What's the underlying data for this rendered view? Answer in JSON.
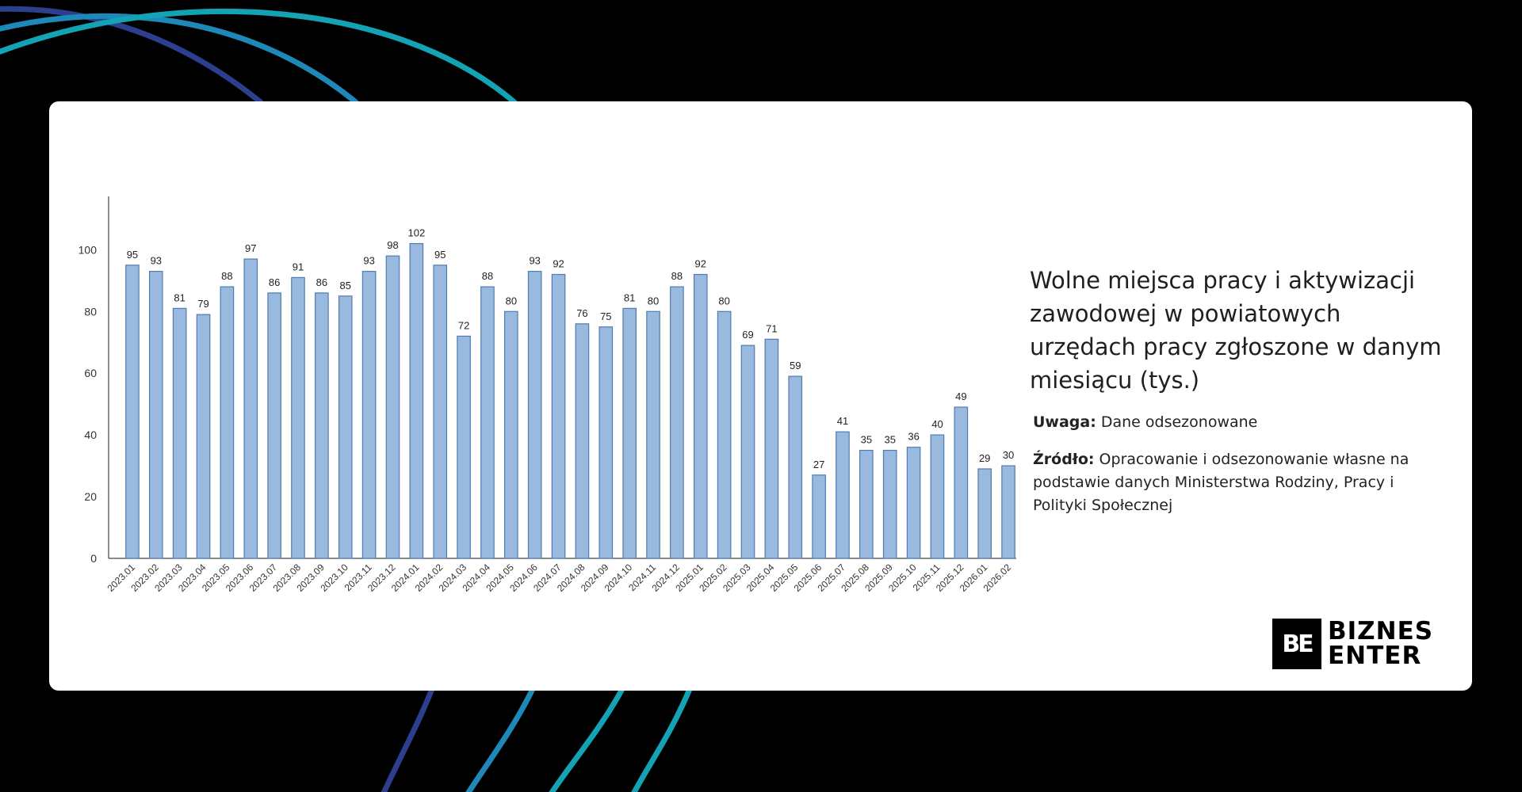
{
  "colors": {
    "background": "#000000",
    "card": "#ffffff",
    "bar_fill": "#9ab9de",
    "bar_stroke": "#4f7cb0",
    "arc_blue": "#1e88b8",
    "arc_teal": "#13a3b5",
    "arc_navy": "#2c3f8f"
  },
  "text": {
    "title": "Wolne miejsca pracy i aktywizacji zawodowej w powiatowych urzędach pracy zgłoszone w danym miesiącu (tys.)",
    "note_label": "Uwaga:",
    "note_text": " Dane odsezonowane",
    "source_label": "Źródło:",
    "source_text": " Opracowanie i odsezonowanie własne na podstawie danych Ministerstwa Rodziny, Pracy i Polityki Społecznej"
  },
  "logo": {
    "mark": "BE",
    "line1": "BIZNES",
    "line2": "ENTER"
  },
  "chart_data": {
    "type": "bar",
    "title": "Wolne miejsca pracy i aktywizacji zawodowej w powiatowych urzędach pracy zgłoszone w danym miesiącu (tys.)",
    "xlabel": "",
    "ylabel": "",
    "ylim": [
      0,
      116
    ],
    "yticks": [
      0,
      20,
      40,
      60,
      80,
      100
    ],
    "categories": [
      "2023.01",
      "2023.02",
      "2023.03",
      "2023.04",
      "2023.05",
      "2023.06",
      "2023.07",
      "2023.08",
      "2023.09",
      "2023.10",
      "2023.11",
      "2023.12",
      "2024.01",
      "2024.02",
      "2024.03",
      "2024.04",
      "2024.05",
      "2024.06",
      "2024.07",
      "2024.08",
      "2024.09",
      "2024.10",
      "2024.11",
      "2024.12",
      "2025.01",
      "2025.02",
      "2025.03",
      "2025.04",
      "2025.05",
      "2025.06",
      "2025.07",
      "2025.08",
      "2025.09",
      "2025.10",
      "2025.11",
      "2025.12",
      "2026.01",
      "2026.02"
    ],
    "values": [
      95,
      93,
      81,
      79,
      88,
      97,
      86,
      91,
      86,
      85,
      93,
      98,
      102,
      95,
      72,
      88,
      80,
      93,
      92,
      76,
      75,
      81,
      80,
      88,
      92,
      80,
      69,
      71,
      59,
      27,
      41,
      35,
      35,
      36,
      40,
      49,
      29,
      30
    ]
  }
}
